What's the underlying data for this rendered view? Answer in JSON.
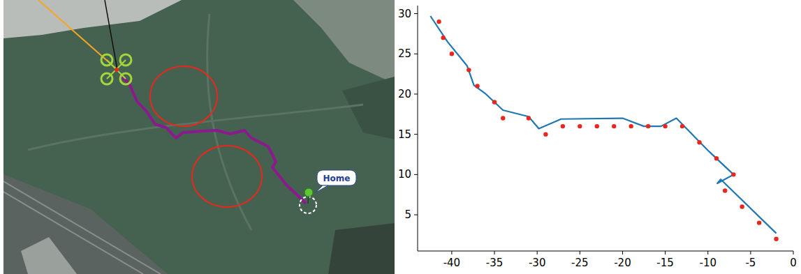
{
  "map": {
    "home_label": "Home"
  },
  "chart_data": {
    "type": "line",
    "xlim": [
      -44,
      0
    ],
    "ylim": [
      0.5,
      31
    ],
    "xticks": [
      -40,
      -35,
      -30,
      -25,
      -20,
      -15,
      -10,
      -5,
      0
    ],
    "yticks": [
      5,
      10,
      15,
      20,
      25,
      30
    ],
    "grid": false,
    "series": [
      {
        "type": "line",
        "color": "#1f77b4",
        "line_style": "solid",
        "x": [
          -42.5,
          -40.5,
          -38.2,
          -37.4,
          -36,
          -34,
          -31,
          -29.8,
          -27.2,
          -20,
          -17.5,
          -15.5,
          -13.7,
          -10,
          -7,
          -8.9,
          -8.5,
          -2
        ],
        "values": [
          29.7,
          26.5,
          23.5,
          21.1,
          20,
          18,
          17.2,
          15.7,
          16.9,
          17,
          16,
          16,
          17,
          13,
          10,
          8.9,
          9.4,
          2.7
        ]
      },
      {
        "type": "scatter",
        "color": "#e8281e",
        "marker": "circle",
        "x": [
          -41.5,
          -41,
          -40,
          -38,
          -37,
          -35,
          -34,
          -31,
          -29,
          -27,
          -25,
          -23,
          -21,
          -19,
          -17,
          -15,
          -13,
          -11,
          -9,
          -7,
          -8,
          -6,
          -4,
          -2
        ],
        "values": [
          29,
          27,
          25,
          23,
          21,
          19,
          17,
          17,
          15,
          16,
          16,
          16,
          16,
          16,
          16,
          16,
          16,
          14,
          12,
          10,
          8,
          6,
          4,
          2
        ]
      }
    ]
  }
}
